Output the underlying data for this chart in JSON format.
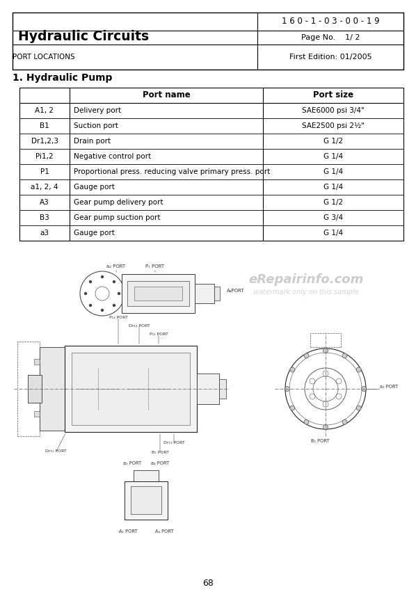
{
  "doc_number": "1 6 0 - 1 - 0 3 - 0 0 - 1 9",
  "title": "Hydraulic Circuits",
  "subtitle": "PORT LOCATIONS",
  "page_no_label": "Page No.",
  "page_no_val": "1/ 2",
  "edition": "First Edition: 01/2005",
  "section_title": "1. Hydraulic Pump",
  "table_headers": [
    "",
    "Port name",
    "Port size"
  ],
  "table_rows": [
    [
      "A1, 2",
      "Delivery port",
      "SAE6000 psi 3/4\""
    ],
    [
      "B1",
      "Suction port",
      "SAE2500 psi 2½\""
    ],
    [
      "Dr1,2,3",
      "Drain port",
      "G 1/2"
    ],
    [
      "Pi1,2",
      "Negative control port",
      "G 1/4"
    ],
    [
      "P1",
      "Proportional press. reducing valve primary press. port",
      "G 1/4"
    ],
    [
      "a1, 2, 4",
      "Gauge port",
      "G 1/4"
    ],
    [
      "A3",
      "Gear pump delivery port",
      "G 1/2"
    ],
    [
      "B3",
      "Gear pump suction port",
      "G 3/4"
    ],
    [
      "a3",
      "Gauge port",
      "G 1/4"
    ]
  ],
  "watermark_line1": "eRepairinfo.com",
  "watermark_line2": "watermark only on this sample",
  "page_number": "68",
  "bg_color": "#ffffff"
}
